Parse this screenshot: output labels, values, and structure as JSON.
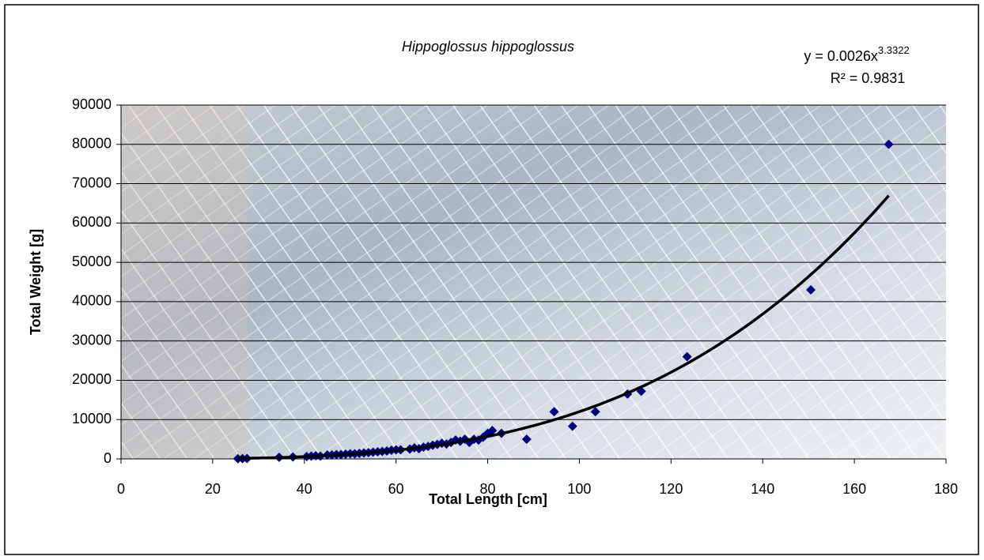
{
  "chart_data": {
    "type": "scatter",
    "title": "Hippoglossus hippoglossus",
    "x_label": "Total Length [cm]",
    "y_label": "Total Weight [g]",
    "x": [
      25.5,
      26.5,
      27.5,
      34.5,
      37.5,
      40.5,
      41.5,
      42.5,
      43.5,
      45,
      46,
      47,
      48,
      49,
      50,
      51,
      52,
      53,
      54,
      55,
      56,
      57,
      58,
      59,
      60,
      61,
      63,
      64,
      65,
      66,
      67,
      68,
      69,
      70,
      71,
      72,
      73,
      74,
      75,
      76,
      77,
      78,
      79,
      80,
      81,
      83,
      88.5,
      94.5,
      98.5,
      103.5,
      110.5,
      113.5,
      123.5,
      150.5,
      167.5
    ],
    "values": [
      50,
      80,
      100,
      400,
      500,
      600,
      700,
      800,
      700,
      1000,
      1000,
      1100,
      1100,
      1200,
      1300,
      1300,
      1400,
      1500,
      1600,
      1700,
      1800,
      1900,
      2000,
      2200,
      2300,
      2300,
      2500,
      2800,
      2600,
      3000,
      3200,
      3500,
      3700,
      4000,
      3800,
      4200,
      4800,
      4500,
      5000,
      4200,
      5000,
      4800,
      5500,
      6500,
      7200,
      6500,
      5000,
      12000,
      8300,
      12000,
      16500,
      17200,
      26000,
      43000,
      80000
    ],
    "color": "#000080",
    "xlim": [
      0,
      180
    ],
    "xticks": [
      0,
      20,
      40,
      60,
      80,
      100,
      120,
      140,
      160,
      180
    ],
    "ylim": [
      0,
      90000
    ],
    "yticks": [
      0,
      10000,
      20000,
      30000,
      40000,
      50000,
      60000,
      70000,
      80000,
      90000
    ],
    "grid": true,
    "trendline": {
      "coefficient": {
        "value": 0.0026,
        "label": "y = 0.0026x"
      },
      "exponent": 3.3322,
      "r2": {
        "value": 0.9831,
        "label": "R² = 0.9831"
      },
      "color": "#000000"
    }
  }
}
